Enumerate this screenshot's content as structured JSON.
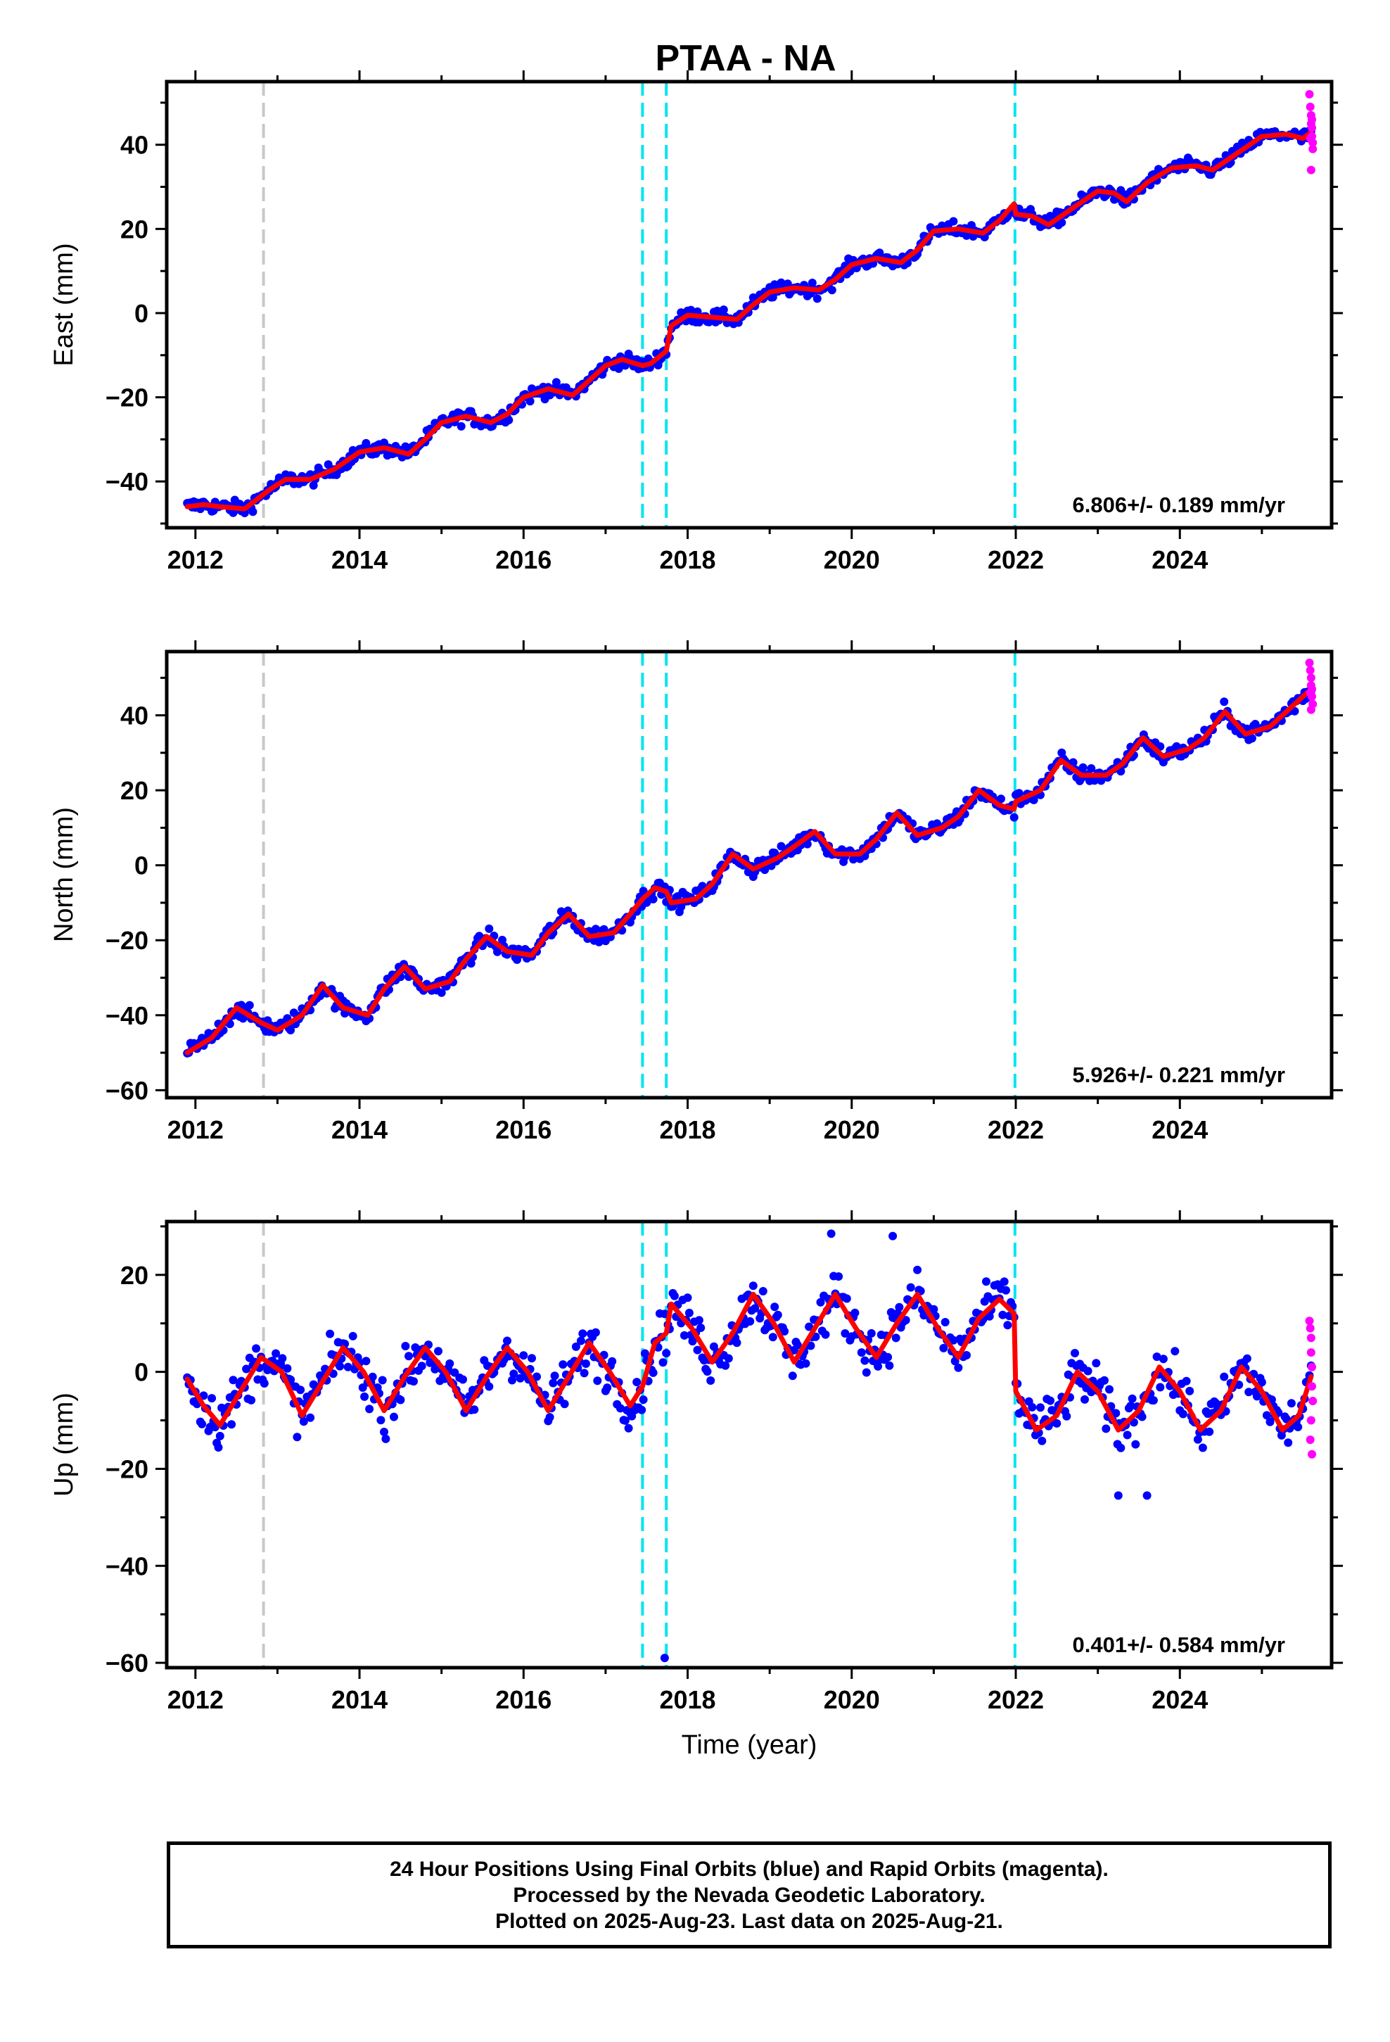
{
  "page": {
    "title": "PTAA - NA"
  },
  "chart_data": [
    {
      "type": "scatter",
      "ylabel": "East (mm)",
      "xlabel": "",
      "xlim": [
        2011.65,
        2025.85
      ],
      "ylim": [
        -51,
        55
      ],
      "xticks": [
        2012,
        2014,
        2016,
        2018,
        2020,
        2022,
        2024
      ],
      "yticks": [
        -40,
        -20,
        0,
        20,
        40
      ],
      "rate_label": "6.806+/- 0.189 mm/yr",
      "vlines": [
        {
          "x": 2012.83,
          "color": "#c8c8c8"
        },
        {
          "x": 2017.45,
          "color": "#00e5ee"
        },
        {
          "x": 2017.74,
          "color": "#00e5ee"
        },
        {
          "x": 2021.99,
          "color": "#00e5ee"
        }
      ],
      "model_curve": {
        "color": "#ff0000",
        "x": [
          2011.9,
          2012.1,
          2012.3,
          2012.6,
          2012.9,
          2013.1,
          2013.4,
          2013.7,
          2014.0,
          2014.3,
          2014.6,
          2014.8,
          2015.0,
          2015.3,
          2015.6,
          2015.8,
          2016.0,
          2016.3,
          2016.6,
          2016.8,
          2017.0,
          2017.2,
          2017.45,
          2017.55,
          2017.74,
          2017.8,
          2018.0,
          2018.3,
          2018.6,
          2018.8,
          2019.0,
          2019.3,
          2019.6,
          2019.8,
          2020.0,
          2020.3,
          2020.6,
          2020.8,
          2021.0,
          2021.3,
          2021.6,
          2021.8,
          2021.98,
          2022.0,
          2022.2,
          2022.4,
          2022.7,
          2023.0,
          2023.2,
          2023.35,
          2023.6,
          2023.9,
          2024.2,
          2024.4,
          2024.7,
          2025.0,
          2025.3,
          2025.5,
          2025.6
        ],
        "y": [
          -46,
          -45.5,
          -46,
          -46.5,
          -42,
          -39.5,
          -39.5,
          -37,
          -33,
          -32,
          -33.5,
          -30,
          -26,
          -24.5,
          -26,
          -24,
          -20,
          -18,
          -19.5,
          -16,
          -12.5,
          -11,
          -12.5,
          -12,
          -9,
          -3,
          -0.5,
          -1,
          -1.5,
          2,
          5,
          6,
          5.5,
          8,
          11.5,
          13,
          12,
          15,
          19.5,
          20,
          19,
          22,
          26,
          23.5,
          23,
          21,
          25,
          29,
          28.5,
          26.5,
          31,
          34.5,
          35,
          34,
          38,
          42,
          42.5,
          41.5,
          43
        ]
      },
      "final_orbits": {
        "color": "#0000ff",
        "x_start": 2011.9,
        "x_end": 2025.6,
        "step": 0.02,
        "trend_per_year": 6.806,
        "seasonal_amplitude_mm": 2.5,
        "scatter_mm": 1.2
      },
      "rapid_orbits": {
        "color": "#ff00ff",
        "x": [
          2025.58,
          2025.59,
          2025.6,
          2025.6,
          2025.61,
          2025.61,
          2025.62,
          2025.62,
          2025.6,
          2025.59,
          2025.61
        ],
        "y": [
          52,
          49,
          47,
          45,
          44,
          42,
          40.5,
          39,
          34,
          41.5,
          46
        ]
      }
    },
    {
      "type": "scatter",
      "ylabel": "North (mm)",
      "xlabel": "",
      "xlim": [
        2011.65,
        2025.85
      ],
      "ylim": [
        -62,
        57
      ],
      "xticks": [
        2012,
        2014,
        2016,
        2018,
        2020,
        2022,
        2024
      ],
      "yticks": [
        -60,
        -40,
        -20,
        0,
        20,
        40
      ],
      "rate_label": "5.926+/- 0.221 mm/yr",
      "vlines": [
        {
          "x": 2012.83,
          "color": "#c8c8c8"
        },
        {
          "x": 2017.45,
          "color": "#00e5ee"
        },
        {
          "x": 2017.74,
          "color": "#00e5ee"
        },
        {
          "x": 2021.99,
          "color": "#00e5ee"
        }
      ],
      "model_curve": {
        "color": "#ff0000",
        "x": [
          2011.9,
          2012.2,
          2012.5,
          2012.8,
          2013.0,
          2013.3,
          2013.55,
          2013.8,
          2014.1,
          2014.3,
          2014.55,
          2014.8,
          2015.1,
          2015.3,
          2015.55,
          2015.8,
          2016.1,
          2016.3,
          2016.55,
          2016.8,
          2017.1,
          2017.3,
          2017.45,
          2017.6,
          2017.74,
          2017.8,
          2018.1,
          2018.3,
          2018.55,
          2018.8,
          2019.1,
          2019.3,
          2019.55,
          2019.8,
          2020.1,
          2020.3,
          2020.55,
          2020.8,
          2021.1,
          2021.3,
          2021.55,
          2021.8,
          2021.98,
          2022.0,
          2022.3,
          2022.55,
          2022.8,
          2023.1,
          2023.3,
          2023.55,
          2023.8,
          2024.1,
          2024.3,
          2024.55,
          2024.8,
          2025.1,
          2025.3,
          2025.6
        ],
        "y": [
          -50,
          -46,
          -38,
          -42,
          -44,
          -40,
          -32,
          -38,
          -40,
          -33,
          -27,
          -33,
          -31,
          -25,
          -19,
          -23,
          -24,
          -18,
          -13,
          -19,
          -18,
          -13,
          -9,
          -6,
          -7,
          -10,
          -9,
          -5,
          3,
          -1,
          2,
          5,
          9,
          3,
          3,
          7,
          14,
          8,
          10,
          13,
          20,
          16,
          15,
          17,
          20,
          28,
          24,
          24,
          27,
          34,
          29,
          31,
          34,
          41,
          35,
          37,
          41,
          47
        ]
      },
      "final_orbits": {
        "color": "#0000ff",
        "x_start": 2011.9,
        "x_end": 2025.6,
        "step": 0.02,
        "trend_per_year": 5.926,
        "seasonal_amplitude_mm": 3.5,
        "scatter_mm": 1.6
      },
      "rapid_orbits": {
        "color": "#ff00ff",
        "x": [
          2025.58,
          2025.59,
          2025.6,
          2025.6,
          2025.61,
          2025.61,
          2025.62,
          2025.6,
          2025.59
        ],
        "y": [
          54,
          52,
          50,
          48,
          47,
          45,
          43,
          41.5,
          46
        ]
      }
    },
    {
      "type": "scatter",
      "ylabel": "Up (mm)",
      "xlabel": "Time (year)",
      "xlim": [
        2011.65,
        2025.85
      ],
      "ylim": [
        -61,
        31
      ],
      "xticks": [
        2012,
        2014,
        2016,
        2018,
        2020,
        2022,
        2024
      ],
      "yticks": [
        -60,
        -40,
        -20,
        0,
        20
      ],
      "rate_label": "0.401+/- 0.584 mm/yr",
      "vlines": [
        {
          "x": 2012.83,
          "color": "#c8c8c8"
        },
        {
          "x": 2017.45,
          "color": "#00e5ee"
        },
        {
          "x": 2017.74,
          "color": "#00e5ee"
        },
        {
          "x": 2021.99,
          "color": "#00e5ee"
        }
      ],
      "model_curve": {
        "color": "#ff0000",
        "x": [
          2011.9,
          2012.1,
          2012.3,
          2012.55,
          2012.8,
          2013.05,
          2013.3,
          2013.55,
          2013.8,
          2014.05,
          2014.3,
          2014.55,
          2014.8,
          2015.05,
          2015.3,
          2015.55,
          2015.8,
          2016.05,
          2016.3,
          2016.55,
          2016.8,
          2017.05,
          2017.3,
          2017.45,
          2017.6,
          2017.74,
          2017.8,
          2018.05,
          2018.3,
          2018.55,
          2018.8,
          2019.05,
          2019.3,
          2019.55,
          2019.8,
          2020.05,
          2020.3,
          2020.55,
          2020.8,
          2021.05,
          2021.3,
          2021.55,
          2021.8,
          2021.98,
          2022.0,
          2022.25,
          2022.5,
          2022.75,
          2023.0,
          2023.25,
          2023.5,
          2023.75,
          2024.0,
          2024.25,
          2024.5,
          2024.75,
          2025.0,
          2025.25,
          2025.45,
          2025.6
        ],
        "y": [
          -1.5,
          -7,
          -11,
          -4,
          3,
          0,
          -9,
          -2,
          5,
          0,
          -8,
          -1,
          5,
          0,
          -8,
          -1,
          5,
          0,
          -8,
          -1,
          6,
          0,
          -7,
          -3,
          6,
          8,
          14,
          9,
          2,
          8,
          16,
          10,
          2,
          9,
          16,
          9,
          3,
          10,
          16,
          9,
          3,
          11,
          15,
          12,
          -4,
          -12,
          -9,
          0,
          -4,
          -12,
          -8,
          1,
          -4,
          -12,
          -8,
          1,
          -4,
          -12,
          -9,
          -1
        ]
      },
      "final_orbits": {
        "color": "#0000ff",
        "x_start": 2011.9,
        "x_end": 2025.6,
        "step": 0.02,
        "trend_per_year": 0.401,
        "seasonal_amplitude_mm": 8,
        "scatter_mm": 3.6
      },
      "outliers": {
        "color": "#0000ff",
        "x": [
          2017.72,
          2023.25,
          2023.6,
          2019.75,
          2020.5
        ],
        "y": [
          -59,
          -25.5,
          -25.5,
          28.5,
          28
        ]
      },
      "rapid_orbits": {
        "color": "#ff00ff",
        "x": [
          2025.58,
          2025.59,
          2025.6,
          2025.6,
          2025.61,
          2025.61,
          2025.62,
          2025.6,
          2025.59,
          2025.61
        ],
        "y": [
          10.5,
          9,
          7,
          4,
          1,
          -3,
          -6,
          -10,
          -14,
          -17
        ]
      }
    }
  ],
  "footer": {
    "line1": "24 Hour Positions Using Final Orbits (blue) and Rapid Orbits (magenta).",
    "line2": "Processed by the Nevada Geodetic Laboratory.",
    "line3": "Plotted on 2025-Aug-23. Last data on 2025-Aug-21."
  }
}
